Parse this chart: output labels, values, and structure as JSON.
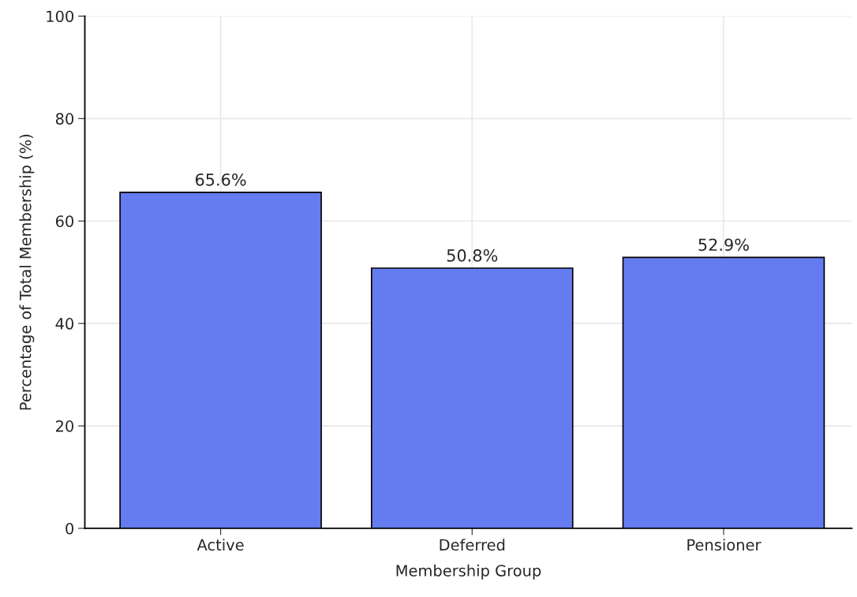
{
  "chart_data": {
    "type": "bar",
    "xlabel": "Membership Group",
    "ylabel": "Percentage of Total Membership (%)",
    "categories": [
      "Active",
      "Deferred",
      "Pensioner"
    ],
    "values": [
      65.6,
      50.8,
      52.9
    ],
    "value_labels": [
      "65.6%",
      "50.8%",
      "52.9%"
    ],
    "color": "#647cf0",
    "ylim": [
      0,
      100
    ],
    "yticks": [
      0,
      20,
      40,
      60,
      80,
      100
    ],
    "grid": true
  }
}
